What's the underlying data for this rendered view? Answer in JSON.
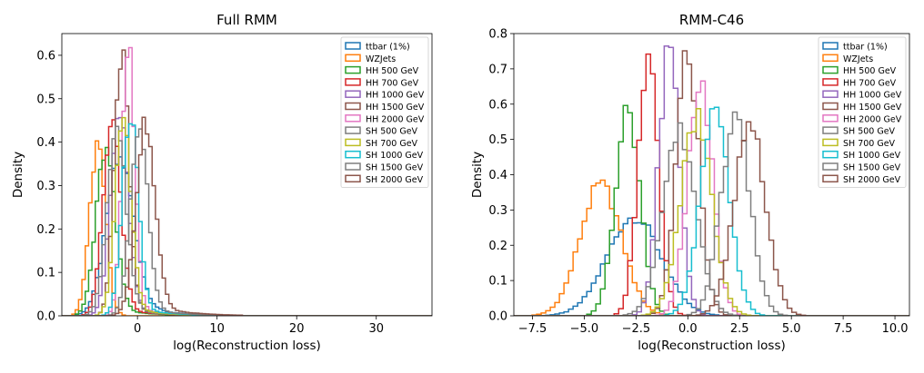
{
  "chart_data": [
    {
      "type": "histogram",
      "title": "Full RMM",
      "xlabel": "log(Reconstruction loss)",
      "ylabel": "Density",
      "xlim": [
        -9.5,
        37
      ],
      "ylim": [
        0,
        0.65
      ],
      "xticks": [
        0,
        10,
        20,
        30
      ],
      "yticks": [
        0.0,
        0.1,
        0.2,
        0.3,
        0.4,
        0.5,
        0.6
      ],
      "grid": false,
      "legend_position": "top-right",
      "series": [
        {
          "name": "ttbar (1%)",
          "color": "#1f77b4",
          "mean": -2.2,
          "sigma": 1.7,
          "peak": 0.36,
          "tail": 0.04
        },
        {
          "name": "WZJets",
          "color": "#ff7f0e",
          "mean": -5.0,
          "sigma": 1.0,
          "peak": 0.4,
          "tail": 0.0
        },
        {
          "name": "HH 500 GeV",
          "color": "#2ca02c",
          "mean": -4.0,
          "sigma": 1.2,
          "peak": 0.38,
          "tail": 0.02
        },
        {
          "name": "HH 700 GeV",
          "color": "#d62728",
          "mean": -3.2,
          "sigma": 1.1,
          "peak": 0.46,
          "tail": 0.02
        },
        {
          "name": "HH 1000 GeV",
          "color": "#9467bd",
          "mean": -2.3,
          "sigma": 1.1,
          "peak": 0.47,
          "tail": 0.02
        },
        {
          "name": "HH 1500 GeV",
          "color": "#8c564b",
          "mean": -2.0,
          "sigma": 0.9,
          "peak": 0.61,
          "tail": 0.02
        },
        {
          "name": "HH 2000 GeV",
          "color": "#e377c2",
          "mean": -1.1,
          "sigma": 0.8,
          "peak": 0.61,
          "tail": 0.02
        },
        {
          "name": "SH 500 GeV",
          "color": "#7f7f7f",
          "mean": -2.6,
          "sigma": 1.2,
          "peak": 0.42,
          "tail": 0.02
        },
        {
          "name": "SH 700 GeV",
          "color": "#bcbd22",
          "mean": -1.8,
          "sigma": 1.0,
          "peak": 0.44,
          "tail": 0.02
        },
        {
          "name": "SH 1000 GeV",
          "color": "#17becf",
          "mean": -0.9,
          "sigma": 1.0,
          "peak": 0.47,
          "tail": 0.02
        },
        {
          "name": "SH 1500 GeV",
          "color": "#7f7f7f",
          "mean": 0.2,
          "sigma": 1.1,
          "peak": 0.43,
          "tail": 0.02
        },
        {
          "name": "SH 2000 GeV",
          "color": "#8c564b",
          "mean": 1.0,
          "sigma": 1.2,
          "peak": 0.44,
          "tail": 0.03
        }
      ]
    },
    {
      "type": "histogram",
      "title": "RMM-C46",
      "xlabel": "log(Reconstruction loss)",
      "ylabel": "Density",
      "xlim": [
        -8.4,
        10.7
      ],
      "ylim": [
        0,
        0.8
      ],
      "xticks": [
        -7.5,
        -5.0,
        -2.5,
        0.0,
        2.5,
        5.0,
        7.5,
        10.0
      ],
      "yticks": [
        0.0,
        0.1,
        0.2,
        0.3,
        0.4,
        0.5,
        0.6,
        0.7,
        0.8
      ],
      "grid": false,
      "legend_position": "top-right",
      "series": [
        {
          "name": "ttbar (1%)",
          "color": "#1f77b4",
          "mean": -2.6,
          "sigma": 1.3,
          "peak": 0.28,
          "tail": 0.0
        },
        {
          "name": "WZJets",
          "color": "#ff7f0e",
          "mean": -4.2,
          "sigma": 1.0,
          "peak": 0.37,
          "tail": 0.0
        },
        {
          "name": "HH 500 GeV",
          "color": "#2ca02c",
          "mean": -2.9,
          "sigma": 0.6,
          "peak": 0.58,
          "tail": 0.0
        },
        {
          "name": "HH 700 GeV",
          "color": "#d62728",
          "mean": -1.9,
          "sigma": 0.5,
          "peak": 0.72,
          "tail": 0.0
        },
        {
          "name": "HH 1000 GeV",
          "color": "#9467bd",
          "mean": -0.9,
          "sigma": 0.5,
          "peak": 0.76,
          "tail": 0.0
        },
        {
          "name": "HH 1500 GeV",
          "color": "#8c564b",
          "mean": 0.0,
          "sigma": 0.55,
          "peak": 0.74,
          "tail": 0.0
        },
        {
          "name": "HH 2000 GeV",
          "color": "#e377c2",
          "mean": 0.6,
          "sigma": 0.6,
          "peak": 0.66,
          "tail": 0.0
        },
        {
          "name": "SH 500 GeV",
          "color": "#7f7f7f",
          "mean": -0.4,
          "sigma": 0.8,
          "peak": 0.52,
          "tail": 0.0
        },
        {
          "name": "SH 700 GeV",
          "color": "#bcbd22",
          "mean": 0.4,
          "sigma": 0.75,
          "peak": 0.56,
          "tail": 0.0
        },
        {
          "name": "SH 1000 GeV",
          "color": "#17becf",
          "mean": 1.3,
          "sigma": 0.7,
          "peak": 0.57,
          "tail": 0.0
        },
        {
          "name": "SH 1500 GeV",
          "color": "#7f7f7f",
          "mean": 2.3,
          "sigma": 0.7,
          "peak": 0.56,
          "tail": 0.0
        },
        {
          "name": "SH 2000 GeV",
          "color": "#8c564b",
          "mean": 3.0,
          "sigma": 0.75,
          "peak": 0.55,
          "tail": 0.0
        }
      ]
    }
  ]
}
